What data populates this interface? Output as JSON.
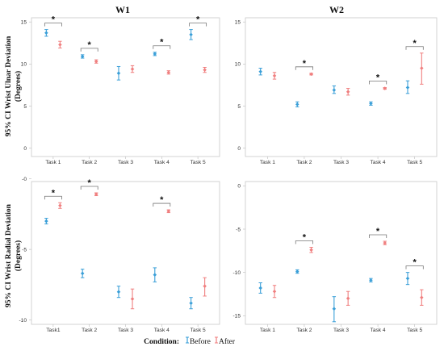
{
  "figure": {
    "title_w1": "W1",
    "title_w2": "W2",
    "ylabel_top": "95% CI Wrist Ulnar Deviation",
    "ylabel_top_units": "(Degrees)",
    "ylabel_bottom": "95% CI Wrist Radial Deviation",
    "ylabel_bottom_units": "(Degrees)",
    "legend": {
      "title": "Condition:",
      "items": [
        {
          "label": "Before",
          "color": "#3a9fd8"
        },
        {
          "label": "After",
          "color": "#f07f7f"
        }
      ]
    },
    "colors": {
      "before": "#3a9fd8",
      "after": "#f07f7f"
    }
  },
  "chart_data": [
    {
      "type": "scatter",
      "title": "W1",
      "ylabel": "95% CI Wrist Ulnar Deviation (Degrees)",
      "categories": [
        "Task 1",
        "Task 2",
        "Task 3",
        "Task 4",
        "Task 5"
      ],
      "ylim": [
        -1,
        15.5
      ],
      "yticks": [
        0,
        5,
        10,
        15
      ],
      "series": [
        {
          "name": "Before",
          "mean": [
            13.7,
            10.9,
            8.9,
            11.2,
            13.5
          ],
          "low": [
            13.3,
            10.7,
            8.1,
            11.0,
            12.9
          ],
          "high": [
            14.1,
            11.1,
            9.7,
            11.4,
            14.1
          ]
        },
        {
          "name": "After",
          "mean": [
            12.3,
            10.3,
            9.4,
            9.0,
            9.3
          ],
          "low": [
            11.9,
            10.1,
            9.0,
            8.8,
            9.0
          ],
          "high": [
            12.7,
            10.5,
            9.8,
            9.2,
            9.6
          ]
        }
      ],
      "significant": [
        "Task 1",
        "Task 2",
        "Task 4",
        "Task 5"
      ]
    },
    {
      "type": "scatter",
      "title": "W2",
      "ylabel": "",
      "categories": [
        "Task 1",
        "Task 2",
        "Task 3",
        "Task 4",
        "Task 5"
      ],
      "ylim": [
        -1,
        15.5
      ],
      "yticks": [
        0,
        5,
        10,
        15
      ],
      "series": [
        {
          "name": "Before",
          "mean": [
            9.1,
            5.2,
            6.9,
            5.3,
            7.2
          ],
          "low": [
            8.7,
            4.9,
            6.5,
            5.1,
            6.5
          ],
          "high": [
            9.5,
            5.5,
            7.4,
            5.5,
            8.0
          ]
        },
        {
          "name": "After",
          "mean": [
            8.6,
            8.8,
            6.7,
            7.1,
            9.5
          ],
          "low": [
            8.2,
            8.7,
            6.3,
            7.0,
            7.6
          ],
          "high": [
            9.0,
            8.9,
            7.1,
            7.2,
            11.3
          ]
        }
      ],
      "significant": [
        "Task 2",
        "Task 4",
        "Task 5"
      ]
    },
    {
      "type": "scatter",
      "title": "",
      "ylabel": "95% CI Wrist Radial Deviation (Degrees)",
      "categories": [
        "Task1",
        "Task 2",
        "Task 3",
        "Task 4",
        "Task 5"
      ],
      "ylim": [
        -10.3,
        -0.2
      ],
      "yticks": [
        -10,
        -5,
        0
      ],
      "ytick_labels": [
        "-10",
        "-5",
        "-0"
      ],
      "series": [
        {
          "name": "Before",
          "mean": [
            -3.0,
            -6.7,
            -8.0,
            -6.8,
            -8.8
          ],
          "low": [
            -3.2,
            -7.0,
            -8.4,
            -7.3,
            -9.2
          ],
          "high": [
            -2.8,
            -6.4,
            -7.6,
            -6.3,
            -8.4
          ]
        },
        {
          "name": "After",
          "mean": [
            -1.9,
            -1.1,
            -8.5,
            -2.3,
            -7.6
          ],
          "low": [
            -2.1,
            -1.2,
            -9.2,
            -2.4,
            -8.3
          ],
          "high": [
            -1.7,
            -1.0,
            -7.8,
            -2.2,
            -7.0
          ]
        }
      ],
      "significant": [
        "Task1",
        "Task 2",
        "Task 4"
      ]
    },
    {
      "type": "scatter",
      "title": "",
      "ylabel": "",
      "categories": [
        "Task 1",
        "Task 2",
        "Task 3",
        "Task 4",
        "Task 5"
      ],
      "ylim": [
        -16,
        0.5
      ],
      "yticks": [
        -15,
        -10,
        -5,
        0
      ],
      "series": [
        {
          "name": "Before",
          "mean": [
            -11.8,
            -9.9,
            -14.2,
            -10.9,
            -10.7
          ],
          "low": [
            -12.4,
            -10.1,
            -15.7,
            -11.1,
            -11.4
          ],
          "high": [
            -11.2,
            -9.7,
            -12.8,
            -10.7,
            -10.0
          ]
        },
        {
          "name": "After",
          "mean": [
            -12.2,
            -7.4,
            -13.0,
            -6.6,
            -12.9
          ],
          "low": [
            -12.9,
            -7.7,
            -13.8,
            -6.8,
            -13.8
          ],
          "high": [
            -11.5,
            -7.1,
            -12.2,
            -6.4,
            -12.0
          ]
        }
      ],
      "significant": [
        "Task 2",
        "Task 4",
        "Task 5"
      ]
    }
  ]
}
